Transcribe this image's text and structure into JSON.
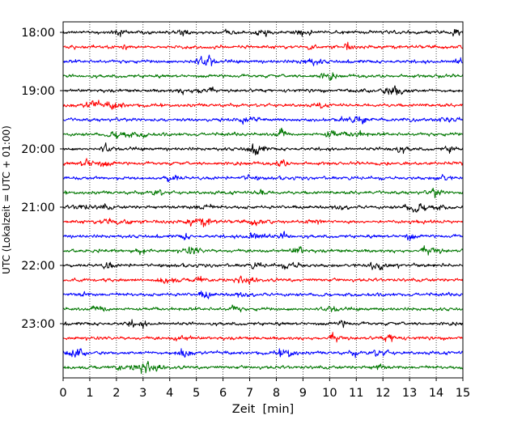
{
  "chart_data": {
    "type": "line",
    "title": "",
    "xlabel": "Zeit  [min]",
    "ylabel": "UTC (Lokalzeit = UTC + 01:00)",
    "xlim": [
      0,
      15
    ],
    "x_ticks": [
      0,
      1,
      2,
      3,
      4,
      5,
      6,
      7,
      8,
      9,
      10,
      11,
      12,
      13,
      14,
      15
    ],
    "y_ticks": [
      "18:00",
      "19:00",
      "20:00",
      "21:00",
      "22:00",
      "23:00"
    ],
    "grid": "vertical dotted lines at each minute",
    "trace_interval_minutes": 15,
    "color_cycle": [
      "#000000",
      "#ff0000",
      "#0000ff",
      "#007700"
    ],
    "series": [
      {
        "start": "18:00",
        "color": "#000000"
      },
      {
        "start": "18:15",
        "color": "#ff0000"
      },
      {
        "start": "18:30",
        "color": "#0000ff"
      },
      {
        "start": "18:45",
        "color": "#007700"
      },
      {
        "start": "19:00",
        "color": "#000000"
      },
      {
        "start": "19:15",
        "color": "#ff0000"
      },
      {
        "start": "19:30",
        "color": "#0000ff"
      },
      {
        "start": "19:45",
        "color": "#007700"
      },
      {
        "start": "20:00",
        "color": "#000000"
      },
      {
        "start": "20:15",
        "color": "#ff0000"
      },
      {
        "start": "20:30",
        "color": "#0000ff"
      },
      {
        "start": "20:45",
        "color": "#007700"
      },
      {
        "start": "21:00",
        "color": "#000000"
      },
      {
        "start": "21:15",
        "color": "#ff0000"
      },
      {
        "start": "21:30",
        "color": "#0000ff"
      },
      {
        "start": "21:45",
        "color": "#007700"
      },
      {
        "start": "22:00",
        "color": "#000000"
      },
      {
        "start": "22:15",
        "color": "#ff0000"
      },
      {
        "start": "22:30",
        "color": "#0000ff"
      },
      {
        "start": "22:45",
        "color": "#007700"
      },
      {
        "start": "23:00",
        "color": "#000000"
      },
      {
        "start": "23:15",
        "color": "#ff0000"
      },
      {
        "start": "23:30",
        "color": "#0000ff"
      },
      {
        "start": "23:45",
        "color": "#007700"
      }
    ]
  }
}
